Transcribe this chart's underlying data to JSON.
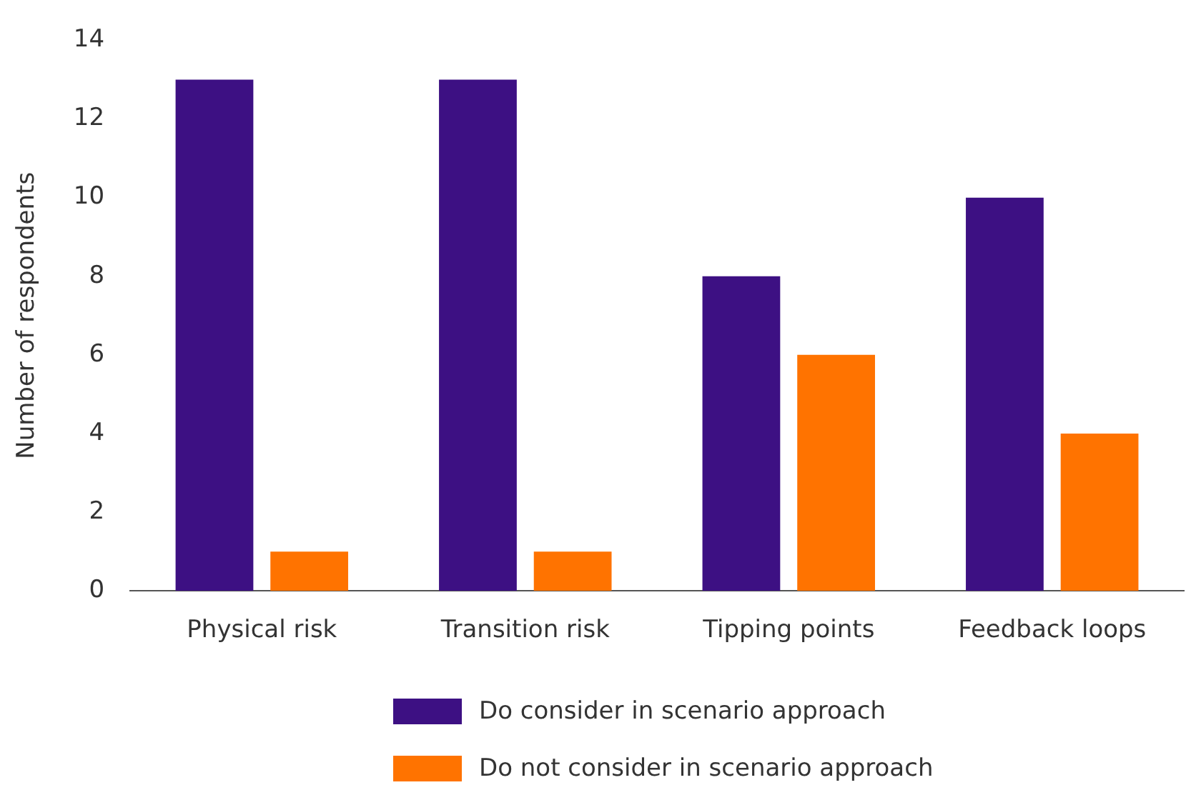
{
  "chart_data": {
    "type": "bar",
    "ylabel": "Number of respondents",
    "categories": [
      "Physical risk",
      "Transition risk",
      "Tipping points",
      "Feedback loops"
    ],
    "series": [
      {
        "name": "Do consider in scenario approach",
        "color": "#3d1083",
        "values": [
          13,
          13,
          8,
          10
        ]
      },
      {
        "name": "Do not consider in scenario approach",
        "color": "#ff7300",
        "values": [
          1,
          1,
          6,
          4
        ]
      }
    ],
    "ylim": [
      0,
      14
    ],
    "yticks": [
      0,
      2,
      4,
      6,
      8,
      10,
      12,
      14
    ],
    "grid": false,
    "legend": "bottom"
  }
}
